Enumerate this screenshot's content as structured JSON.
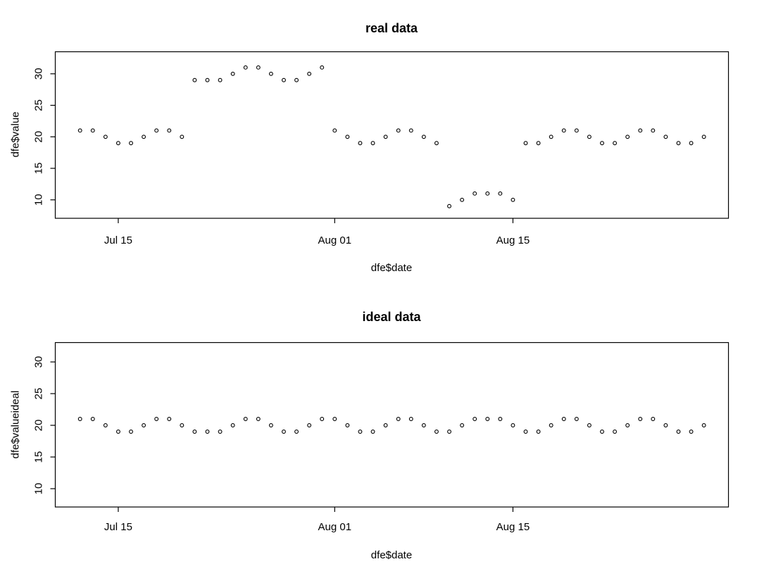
{
  "figure": {
    "background": "#ffffff",
    "axis_color": "#000000",
    "point_color": "#000000",
    "text_color": "#000000"
  },
  "chart_data": [
    {
      "name": "real",
      "type": "scatter",
      "title": "real data",
      "xlabel": "dfe$date",
      "ylabel": "dfe$value",
      "marker": "open-circle",
      "grid": false,
      "legend": "none",
      "y_ticks": [
        10,
        15,
        20,
        25,
        30
      ],
      "ylim": [
        7,
        33
      ],
      "x_interval": "daily",
      "x_tick_labels": [
        "Jul 15",
        "Aug 01",
        "Aug 15"
      ],
      "x_tick_day_index": [
        3,
        20,
        34
      ],
      "x_dates": [
        "Jul 12",
        "Jul 13",
        "Jul 14",
        "Jul 15",
        "Jul 16",
        "Jul 17",
        "Jul 18",
        "Jul 19",
        "Jul 20",
        "Jul 21",
        "Jul 22",
        "Jul 23",
        "Jul 24",
        "Jul 25",
        "Jul 26",
        "Jul 27",
        "Jul 28",
        "Jul 29",
        "Jul 30",
        "Jul 31",
        "Aug 01",
        "Aug 02",
        "Aug 03",
        "Aug 04",
        "Aug 05",
        "Aug 06",
        "Aug 07",
        "Aug 08",
        "Aug 09",
        "Aug 10",
        "Aug 11",
        "Aug 12",
        "Aug 13",
        "Aug 14",
        "Aug 15",
        "Aug 16",
        "Aug 17",
        "Aug 18",
        "Aug 19",
        "Aug 20",
        "Aug 21",
        "Aug 22",
        "Aug 23",
        "Aug 24",
        "Aug 25",
        "Aug 26",
        "Aug 27",
        "Aug 28",
        "Aug 29",
        "Aug 30"
      ],
      "values": [
        21,
        21,
        20,
        19,
        19,
        20,
        21,
        21,
        20,
        29,
        29,
        29,
        30,
        31,
        31,
        30,
        29,
        29,
        30,
        31,
        21,
        20,
        19,
        19,
        20,
        21,
        21,
        20,
        19,
        9,
        10,
        11,
        11,
        11,
        10,
        19,
        19,
        20,
        21,
        21,
        20,
        19,
        19,
        20,
        21,
        21,
        20,
        19,
        19,
        20
      ]
    },
    {
      "name": "ideal",
      "type": "scatter",
      "title": "ideal data",
      "xlabel": "dfe$date",
      "ylabel": "dfe$valueideal",
      "marker": "open-circle",
      "grid": false,
      "legend": "none",
      "y_ticks": [
        10,
        15,
        20,
        25,
        30
      ],
      "ylim": [
        7,
        33
      ],
      "x_interval": "daily",
      "x_tick_labels": [
        "Jul 15",
        "Aug 01",
        "Aug 15"
      ],
      "x_tick_day_index": [
        3,
        20,
        34
      ],
      "x_dates": [
        "Jul 12",
        "Jul 13",
        "Jul 14",
        "Jul 15",
        "Jul 16",
        "Jul 17",
        "Jul 18",
        "Jul 19",
        "Jul 20",
        "Jul 21",
        "Jul 22",
        "Jul 23",
        "Jul 24",
        "Jul 25",
        "Jul 26",
        "Jul 27",
        "Jul 28",
        "Jul 29",
        "Jul 30",
        "Jul 31",
        "Aug 01",
        "Aug 02",
        "Aug 03",
        "Aug 04",
        "Aug 05",
        "Aug 06",
        "Aug 07",
        "Aug 08",
        "Aug 09",
        "Aug 10",
        "Aug 11",
        "Aug 12",
        "Aug 13",
        "Aug 14",
        "Aug 15",
        "Aug 16",
        "Aug 17",
        "Aug 18",
        "Aug 19",
        "Aug 20",
        "Aug 21",
        "Aug 22",
        "Aug 23",
        "Aug 24",
        "Aug 25",
        "Aug 26",
        "Aug 27",
        "Aug 28",
        "Aug 29",
        "Aug 30"
      ],
      "values": [
        21,
        21,
        20,
        19,
        19,
        20,
        21,
        21,
        20,
        19,
        19,
        19,
        20,
        21,
        21,
        20,
        19,
        19,
        20,
        21,
        21,
        20,
        19,
        19,
        20,
        21,
        21,
        20,
        19,
        19,
        20,
        21,
        21,
        21,
        20,
        19,
        19,
        20,
        21,
        21,
        20,
        19,
        19,
        20,
        21,
        21,
        20,
        19,
        19,
        20
      ]
    }
  ]
}
